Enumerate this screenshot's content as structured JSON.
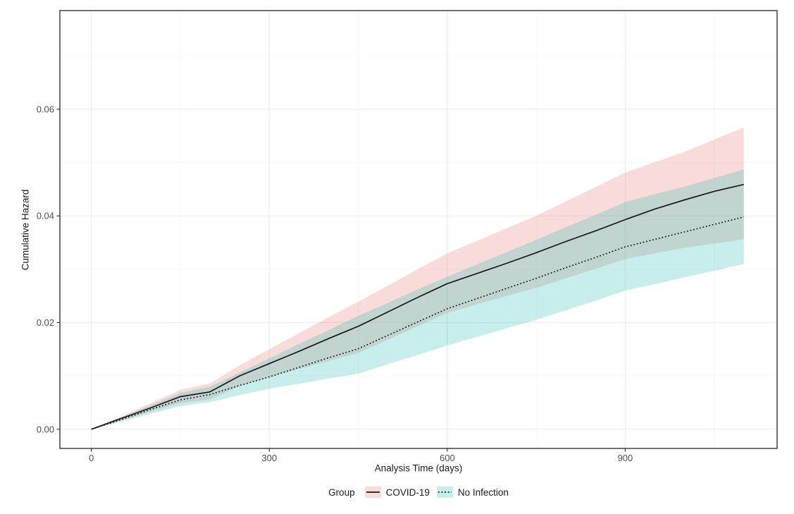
{
  "chart_data": {
    "type": "line",
    "title": "",
    "xlabel": "Analysis Time (days)",
    "ylabel": "Cumulative Hazard",
    "xlim": [
      -53,
      1156
    ],
    "ylim": [
      -0.0036,
      0.0785
    ],
    "grid": true,
    "legend_position": "bottom",
    "legend_title": "Group",
    "x_axis": {
      "tick_labels": [
        "0",
        "300",
        "600",
        "900"
      ],
      "tick_values": [
        0,
        300,
        600,
        900
      ],
      "minor_tick_values": [
        150,
        450,
        750,
        1050
      ]
    },
    "y_axis": {
      "tick_labels": [
        "0.00",
        "0.02",
        "0.04",
        "0.06"
      ],
      "tick_values": [
        0,
        0.02,
        0.04,
        0.06
      ],
      "minor_tick_values": [
        0.01,
        0.03,
        0.05,
        0.07
      ]
    },
    "x": [
      0,
      50,
      100,
      150,
      200,
      250,
      300,
      350,
      400,
      450,
      500,
      550,
      600,
      650,
      700,
      750,
      800,
      850,
      900,
      950,
      1000,
      1050,
      1100
    ],
    "series": [
      {
        "name": "COVID-19",
        "line_style": "solid",
        "line_color": "#1A1A1A",
        "band_color": "rgba(231,115,107,0.25)",
        "values": [
          0,
          0.002,
          0.004,
          0.0061,
          0.007,
          0.01,
          0.0123,
          0.0146,
          0.017,
          0.0193,
          0.022,
          0.0247,
          0.0273,
          0.0292,
          0.0311,
          0.0331,
          0.0352,
          0.0372,
          0.0393,
          0.0413,
          0.043,
          0.0446,
          0.0459
        ],
        "ci_upper": [
          0,
          0.0024,
          0.0049,
          0.0074,
          0.0086,
          0.012,
          0.015,
          0.018,
          0.021,
          0.0239,
          0.0269,
          0.03,
          0.033,
          0.0353,
          0.0377,
          0.04,
          0.0427,
          0.0454,
          0.0481,
          0.0501,
          0.052,
          0.0543,
          0.0566
        ],
        "ci_lower": [
          0,
          0.0016,
          0.0033,
          0.0049,
          0.0056,
          0.0081,
          0.0098,
          0.0113,
          0.0128,
          0.0143,
          0.0168,
          0.0193,
          0.0218,
          0.0234,
          0.025,
          0.0265,
          0.0283,
          0.0301,
          0.0319,
          0.033,
          0.034,
          0.0348,
          0.0356
        ]
      },
      {
        "name": "No Infection",
        "line_style": "dotted",
        "line_color": "#1A1A1A",
        "band_color": "rgba(31,187,175,0.25)",
        "values": [
          0,
          0.0018,
          0.0037,
          0.0055,
          0.0065,
          0.0082,
          0.0098,
          0.0116,
          0.0134,
          0.0151,
          0.0176,
          0.0201,
          0.0226,
          0.0245,
          0.0264,
          0.0283,
          0.0303,
          0.0322,
          0.0342,
          0.0356,
          0.037,
          0.0384,
          0.0398
        ],
        "ci_upper": [
          0,
          0.0022,
          0.0045,
          0.0068,
          0.008,
          0.0106,
          0.0133,
          0.016,
          0.0186,
          0.0213,
          0.0237,
          0.0262,
          0.0286,
          0.0309,
          0.0332,
          0.0355,
          0.0379,
          0.0402,
          0.0426,
          0.0441,
          0.0455,
          0.0471,
          0.0487
        ],
        "ci_lower": [
          0,
          0.0014,
          0.0029,
          0.0043,
          0.0051,
          0.0064,
          0.0076,
          0.0085,
          0.0095,
          0.0104,
          0.0122,
          0.0139,
          0.0157,
          0.0173,
          0.0189,
          0.0205,
          0.0223,
          0.0241,
          0.026,
          0.0272,
          0.0285,
          0.0297,
          0.031
        ]
      }
    ],
    "colors": {
      "grid_major": "#EBEBEB",
      "grid_minor": "#F5F5F5",
      "panel_border": "#333333",
      "tick_mark": "#333333",
      "tick_text": "#4D4D4D",
      "axis_title": "#1A1A1A",
      "background": "#FFFFFF"
    }
  }
}
